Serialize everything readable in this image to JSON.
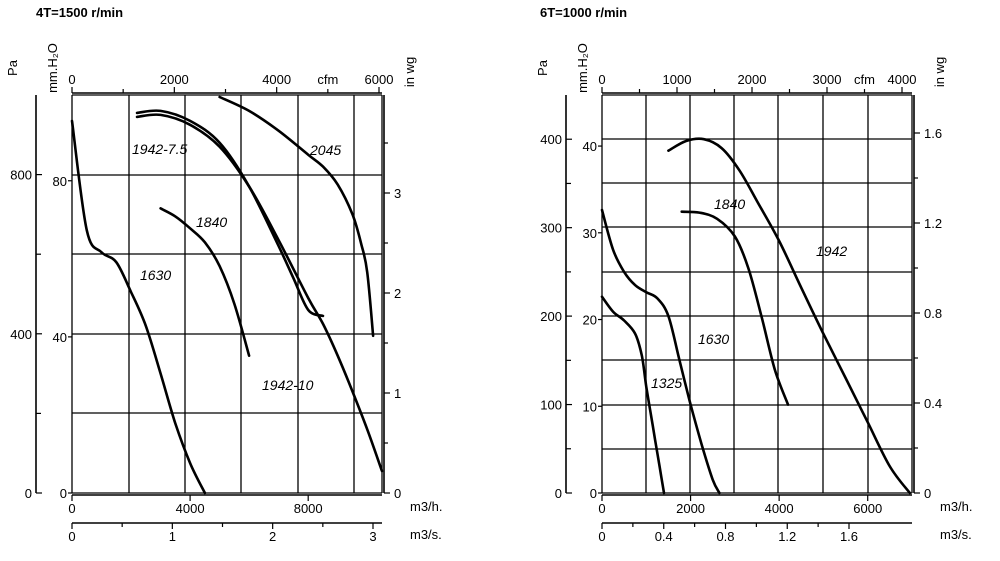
{
  "chart_data": [
    {
      "type": "line",
      "title": "4T=1500 r/min",
      "x_units": [
        "m3/h.",
        "m3/s.",
        "cfm"
      ],
      "y_units": [
        "Pa",
        "mm.H2O",
        "in wg"
      ],
      "xlim_m3h": [
        0,
        10500
      ],
      "ylim_pa": [
        0,
        1000
      ],
      "ticks": {
        "bottom_m3h": {
          "values": [
            0,
            4000,
            8000
          ],
          "labels": [
            "0",
            "4000",
            "8000"
          ],
          "unit": "m3/h."
        },
        "bottom_m3s": {
          "values": [
            0,
            1,
            2,
            3
          ],
          "labels": [
            "0",
            "1",
            "2",
            "3"
          ],
          "unit": "m3/s."
        },
        "top_cfm": {
          "values": [
            0,
            2000,
            4000,
            6000
          ],
          "labels": [
            "0",
            "2000",
            "4000",
            "6000"
          ],
          "unit": "cfm"
        },
        "left_pa": {
          "values": [
            0,
            400,
            800
          ],
          "labels": [
            "0",
            "400",
            "800"
          ],
          "unit": "Pa"
        },
        "left_mmh2o": {
          "values": [
            0,
            40,
            80
          ],
          "labels": [
            "0",
            "40",
            "80"
          ],
          "unit": "mm.H2O"
        },
        "right_inwg": {
          "values": [
            0,
            1,
            2,
            3
          ],
          "labels": [
            "0",
            "1",
            "2",
            "3"
          ],
          "unit": "in wg"
        }
      },
      "grid": true,
      "series": [
        {
          "name": "1630",
          "x": [
            0,
            500,
            1000,
            1500,
            2000,
            2500,
            3000,
            3500,
            4000,
            4500
          ],
          "y": [
            935,
            660,
            605,
            580,
            505,
            420,
            300,
            175,
            75,
            0
          ]
        },
        {
          "name": "1840",
          "x": [
            3000,
            3500,
            4000,
            4500,
            5000,
            5500,
            6000
          ],
          "y": [
            715,
            695,
            665,
            630,
            570,
            475,
            345
          ]
        },
        {
          "name": "1942-7.5",
          "x": [
            2200,
            3000,
            4000,
            5000,
            6000,
            7000,
            7500,
            8000,
            8500
          ],
          "y": [
            955,
            960,
            935,
            880,
            770,
            620,
            540,
            460,
            445
          ]
        },
        {
          "name": "1942-10",
          "x": [
            2200,
            3000,
            4000,
            5000,
            6000,
            7000,
            8000,
            8500,
            9000,
            9500,
            10000,
            10500
          ],
          "y": [
            945,
            950,
            925,
            870,
            770,
            635,
            490,
            425,
            345,
            255,
            160,
            55
          ]
        },
        {
          "name": "2045",
          "x": [
            5000,
            6000,
            7000,
            8000,
            8500,
            9000,
            9500,
            9800,
            10000,
            10200
          ],
          "y": [
            995,
            960,
            910,
            850,
            820,
            775,
            700,
            625,
            555,
            395
          ]
        }
      ]
    },
    {
      "type": "line",
      "title": "6T=1000 r/min",
      "x_units": [
        "m3/h.",
        "m3/s.",
        "cfm"
      ],
      "y_units": [
        "Pa",
        "mm.H2O",
        "in wg"
      ],
      "xlim_m3h": [
        0,
        7000
      ],
      "ylim_pa": [
        0,
        450
      ],
      "ticks": {
        "bottom_m3h": {
          "values": [
            0,
            2000,
            4000,
            6000
          ],
          "labels": [
            "0",
            "2000",
            "4000",
            "6000"
          ],
          "unit": "m3/h."
        },
        "bottom_m3s": {
          "values": [
            0,
            0.4,
            0.8,
            1.2,
            1.6
          ],
          "labels": [
            "0",
            "0.4",
            "0.8",
            "1.2",
            "1.6"
          ],
          "unit": "m3/s."
        },
        "top_cfm": {
          "values": [
            0,
            1000,
            2000,
            3000,
            4000
          ],
          "labels": [
            "0",
            "1000",
            "2000",
            "3000",
            "4000"
          ],
          "unit": "cfm"
        },
        "left_pa": {
          "values": [
            0,
            100,
            200,
            300,
            400
          ],
          "labels": [
            "0",
            "100",
            "200",
            "300",
            "400"
          ],
          "unit": "Pa"
        },
        "left_mmh2o": {
          "values": [
            0,
            10,
            20,
            30,
            40
          ],
          "labels": [
            "0",
            "10",
            "20",
            "30",
            "40"
          ],
          "unit": "mm.H2O"
        },
        "right_inwg": {
          "values": [
            0,
            0.4,
            0.8,
            1.2,
            1.6
          ],
          "labels": [
            "0",
            "0.4",
            "0.8",
            "1.2",
            "1.6"
          ],
          "unit": "in wg"
        }
      },
      "grid": true,
      "series": [
        {
          "name": "1325",
          "x": [
            0,
            250,
            500,
            750,
            900,
            1000,
            1100,
            1200,
            1300,
            1400
          ],
          "y": [
            222,
            205,
            195,
            180,
            155,
            120,
            90,
            60,
            30,
            0
          ]
        },
        {
          "name": "1630",
          "x": [
            0,
            250,
            500,
            750,
            1000,
            1250,
            1500,
            1750,
            2000,
            2250,
            2500,
            2650
          ],
          "y": [
            320,
            275,
            250,
            235,
            227,
            220,
            200,
            150,
            100,
            55,
            15,
            0
          ]
        },
        {
          "name": "1840",
          "x": [
            1800,
            2200,
            2600,
            3000,
            3300,
            3600,
            3900,
            4200
          ],
          "y": [
            318,
            317,
            310,
            290,
            255,
            200,
            140,
            100
          ]
        },
        {
          "name": "1942",
          "x": [
            1500,
            1900,
            2300,
            2700,
            3100,
            3500,
            4000,
            4500,
            5000,
            5500,
            6000,
            6500,
            6950
          ],
          "y": [
            387,
            398,
            400,
            390,
            365,
            330,
            285,
            232,
            180,
            130,
            80,
            30,
            0
          ]
        }
      ]
    }
  ]
}
